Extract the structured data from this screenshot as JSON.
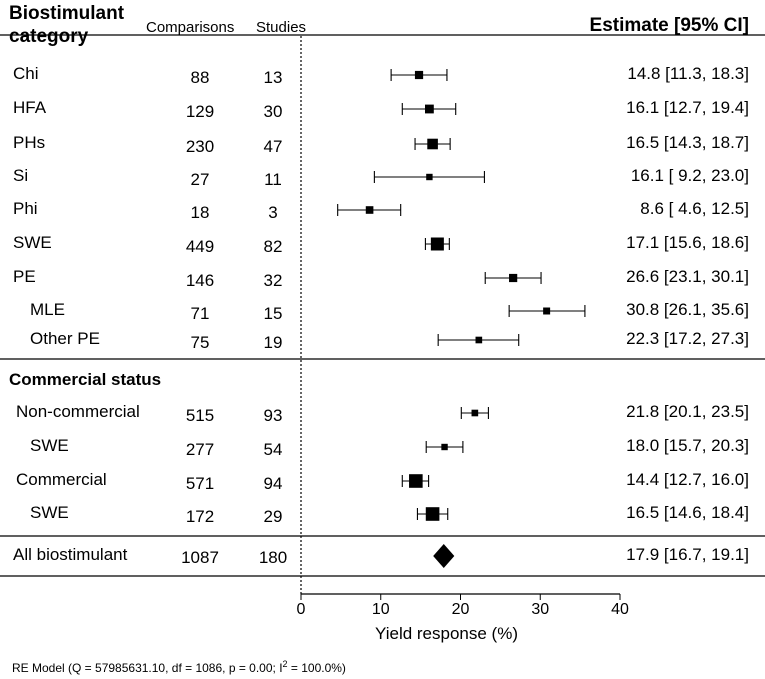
{
  "header": {
    "title_line1": "Biostimulant",
    "title_line2": "category",
    "comparisons": "Comparisons",
    "studies": "Studies",
    "estimate": "Estimate [95% CI]"
  },
  "sections": {
    "commercial_status": "Commercial status"
  },
  "axis": {
    "label": "Yield response (%)"
  },
  "footnote": {
    "prefix": "RE Model (Q = 57985631.10, df = 1086, p = 0.00; I",
    "sup": "2",
    "suffix": " = 100.0%)"
  },
  "chart_data": {
    "type": "forest",
    "xlim": [
      0,
      40
    ],
    "xticks": [
      "0",
      "10",
      "20",
      "30",
      "40"
    ],
    "xlabel": "Yield response (%)",
    "reference_line": 0,
    "rows": [
      {
        "label": "Chi",
        "comparisons": "88",
        "studies": "13",
        "estimate": 14.8,
        "lower": 11.3,
        "upper": 18.3,
        "text": "14.8 [11.3, 18.3]",
        "weight": 0.35
      },
      {
        "label": "HFA",
        "comparisons": "129",
        "studies": "30",
        "estimate": 16.1,
        "lower": 12.7,
        "upper": 19.4,
        "text": "16.1 [12.7, 19.4]",
        "weight": 0.4
      },
      {
        "label": "PHs",
        "comparisons": "230",
        "studies": "47",
        "estimate": 16.5,
        "lower": 14.3,
        "upper": 18.7,
        "text": "16.5 [14.3, 18.7]",
        "weight": 0.55
      },
      {
        "label": "Si",
        "comparisons": "27",
        "studies": "11",
        "estimate": 16.1,
        "lower": 9.2,
        "upper": 23.0,
        "text": "16.1 [ 9.2, 23.0]",
        "weight": 0.2
      },
      {
        "label": "Phi",
        "comparisons": "18",
        "studies": "3",
        "estimate": 8.6,
        "lower": 4.6,
        "upper": 12.5,
        "text": "8.6 [ 4.6, 12.5]",
        "weight": 0.3
      },
      {
        "label": "SWE",
        "comparisons": "449",
        "studies": "82",
        "estimate": 17.1,
        "lower": 15.6,
        "upper": 18.6,
        "text": "17.1 [15.6, 18.6]",
        "weight": 0.75
      },
      {
        "label": "PE",
        "comparisons": "146",
        "studies": "32",
        "estimate": 26.6,
        "lower": 23.1,
        "upper": 30.1,
        "text": "26.6 [23.1, 30.1]",
        "weight": 0.35
      },
      {
        "label": "MLE",
        "comparisons": "71",
        "studies": "15",
        "estimate": 30.8,
        "lower": 26.1,
        "upper": 35.6,
        "text": "30.8 [26.1, 35.6]",
        "weight": 0.25,
        "indent": true
      },
      {
        "label": "Other PE",
        "comparisons": "75",
        "studies": "19",
        "estimate": 22.3,
        "lower": 17.2,
        "upper": 27.3,
        "text": "22.3 [17.2, 27.3]",
        "weight": 0.22,
        "indent": true
      },
      {
        "label": "Non-commercial",
        "comparisons": "515",
        "studies": "93",
        "estimate": 21.8,
        "lower": 20.1,
        "upper": 23.5,
        "text": "21.8 [20.1, 23.5]",
        "weight": 0.22,
        "group": "commercial"
      },
      {
        "label": "SWE",
        "comparisons": "277",
        "studies": "54",
        "estimate": 18.0,
        "lower": 15.7,
        "upper": 20.3,
        "text": "18.0 [15.7, 20.3]",
        "weight": 0.2,
        "indent": true,
        "group": "commercial"
      },
      {
        "label": "Commercial",
        "comparisons": "571",
        "studies": "94",
        "estimate": 14.4,
        "lower": 12.7,
        "upper": 16.0,
        "text": "14.4 [12.7, 16.0]",
        "weight": 0.8,
        "group": "commercial"
      },
      {
        "label": "SWE",
        "comparisons": "172",
        "studies": "29",
        "estimate": 16.5,
        "lower": 14.6,
        "upper": 18.4,
        "text": "16.5 [14.6, 18.4]",
        "weight": 0.8,
        "indent": true,
        "group": "commercial"
      }
    ],
    "summary": {
      "label": "All biostimulant",
      "comparisons": "1087",
      "studies": "180",
      "estimate": 17.9,
      "lower": 16.7,
      "upper": 19.1,
      "text": "17.9 [16.7, 19.1]"
    }
  }
}
